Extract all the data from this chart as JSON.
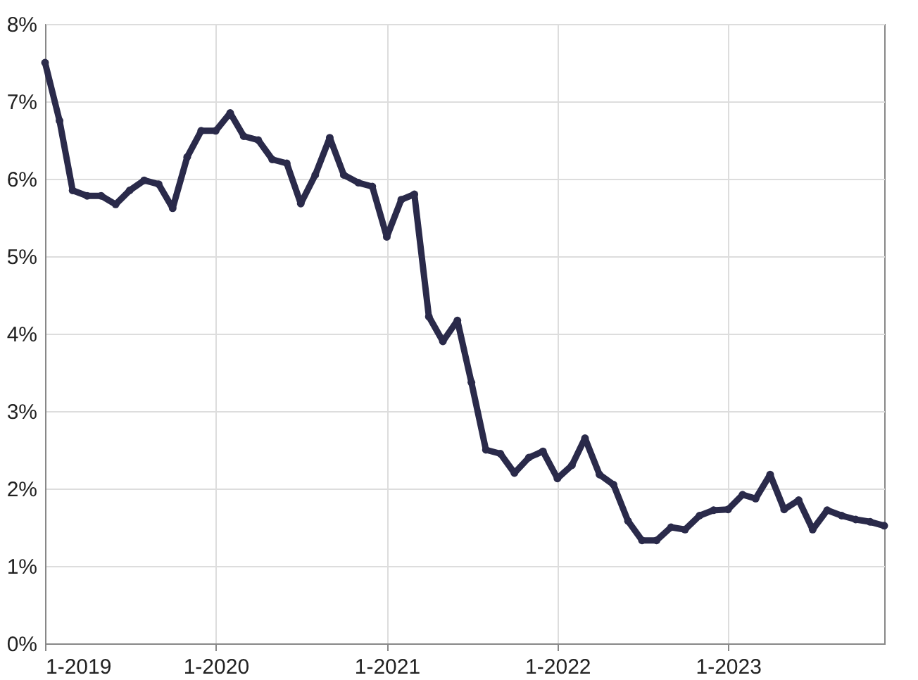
{
  "chart_data": {
    "type": "line",
    "x": [
      "2019-01",
      "2019-02",
      "2019-03",
      "2019-04",
      "2019-05",
      "2019-06",
      "2019-07",
      "2019-08",
      "2019-09",
      "2019-10",
      "2019-11",
      "2019-12",
      "2020-01",
      "2020-02",
      "2020-03",
      "2020-04",
      "2020-05",
      "2020-06",
      "2020-07",
      "2020-08",
      "2020-09",
      "2020-10",
      "2020-11",
      "2020-12",
      "2021-01",
      "2021-02",
      "2021-03",
      "2021-04",
      "2021-05",
      "2021-06",
      "2021-07",
      "2021-08",
      "2021-09",
      "2021-10",
      "2021-11",
      "2021-12",
      "2022-01",
      "2022-02",
      "2022-03",
      "2022-04",
      "2022-05",
      "2022-06",
      "2022-07",
      "2022-08",
      "2022-09",
      "2022-10",
      "2022-11",
      "2022-12",
      "2023-01",
      "2023-02",
      "2023-03",
      "2023-04",
      "2023-05",
      "2023-06",
      "2023-07",
      "2023-08",
      "2023-09",
      "2023-10",
      "2023-11",
      "2023-12"
    ],
    "series": [
      {
        "color": "#2a2a4a",
        "values": [
          7.5,
          6.75,
          5.85,
          5.78,
          5.78,
          5.67,
          5.85,
          5.98,
          5.93,
          5.62,
          6.28,
          6.62,
          6.62,
          6.85,
          6.55,
          6.5,
          6.25,
          6.2,
          5.68,
          6.05,
          6.53,
          6.05,
          5.95,
          5.9,
          5.25,
          5.73,
          5.8,
          4.22,
          3.9,
          4.17,
          3.37,
          2.5,
          2.45,
          2.2,
          2.4,
          2.48,
          2.13,
          2.3,
          2.65,
          2.18,
          2.05,
          1.58,
          1.33,
          1.33,
          1.5,
          1.47,
          1.65,
          1.72,
          1.73,
          1.92,
          1.87,
          2.18,
          1.73,
          1.85,
          1.47,
          1.72,
          1.65,
          1.6,
          1.57,
          1.52
        ]
      }
    ],
    "xlim": [
      "2019-01",
      "2023-12"
    ],
    "xticks": [
      {
        "value": "2019-01",
        "label": "1-2019"
      },
      {
        "value": "2020-01",
        "label": "1-2020"
      },
      {
        "value": "2021-01",
        "label": "1-2021"
      },
      {
        "value": "2022-01",
        "label": "1-2022"
      },
      {
        "value": "2023-01",
        "label": "1-2023"
      }
    ],
    "ylim": [
      0,
      8
    ],
    "yticks": [
      {
        "value": 0,
        "label": "0%"
      },
      {
        "value": 1,
        "label": "1%"
      },
      {
        "value": 2,
        "label": "2%"
      },
      {
        "value": 3,
        "label": "3%"
      },
      {
        "value": 4,
        "label": "4%"
      },
      {
        "value": 5,
        "label": "5%"
      },
      {
        "value": 6,
        "label": "6%"
      },
      {
        "value": 7,
        "label": "7%"
      },
      {
        "value": 8,
        "label": "8%"
      }
    ],
    "grid": true,
    "marker": "circle",
    "line_style": "solid"
  }
}
